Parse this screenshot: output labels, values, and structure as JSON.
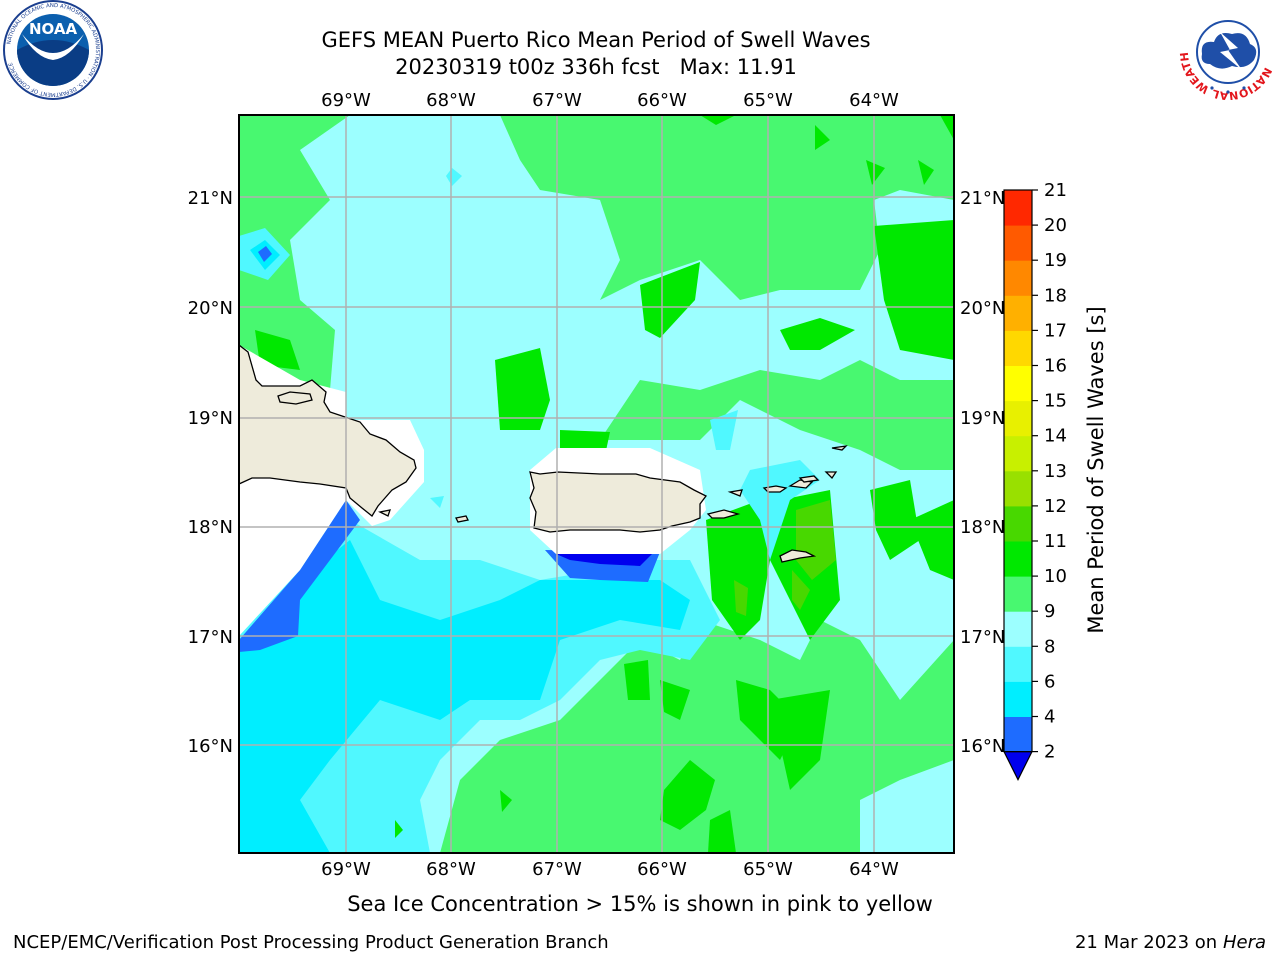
{
  "title": {
    "line1": "GEFS MEAN Puerto Rico Mean Period of Swell Waves",
    "line2": "20230319 t00z 336h fcst   Max: 11.91"
  },
  "logos": {
    "noaa_center": "NOAA",
    "noaa_ring": "NATIONAL OCEANIC AND ATMOSPHERIC ADMINISTRATION · U.S. DEPARTMENT OF COMMERCE",
    "nws_ring": "NATIONAL WEATHER SERVICE",
    "noaa_icon": "noaa-seal-icon",
    "nws_icon": "nws-seal-icon"
  },
  "map": {
    "lon_labels": [
      "69°W",
      "68°W",
      "67°W",
      "66°W",
      "65°W",
      "64°W"
    ],
    "lat_labels": [
      "21°N",
      "20°N",
      "19°N",
      "18°N",
      "17°N",
      "16°N"
    ],
    "land_color": "#eeebdb",
    "grid_color": "#b0b0b0"
  },
  "colorbar": {
    "label": "Mean Period of Swell Waves [s]",
    "ticks": [
      "2",
      "4",
      "6",
      "8",
      "9",
      "10",
      "11",
      "12",
      "13",
      "14",
      "15",
      "16",
      "17",
      "18",
      "19",
      "20",
      "21"
    ],
    "colors": [
      "#0000ee",
      "#1e6cff",
      "#00eeff",
      "#50f8ff",
      "#9cffff",
      "#48f870",
      "#00e800",
      "#48d800",
      "#99e000",
      "#c8f000",
      "#e8f000",
      "#ffff00",
      "#ffd800",
      "#ffb000",
      "#ff8800",
      "#ff5a00",
      "#ff2800",
      "#ff0000"
    ],
    "extend": "min"
  },
  "footer": {
    "note": "Sea Ice Concentration > 15% is shown in pink to yellow",
    "left": "NCEP/EMC/Verification Post Processing Product Generation Branch",
    "right_date": "21 Mar 2023 on",
    "right_host": "Hera"
  }
}
